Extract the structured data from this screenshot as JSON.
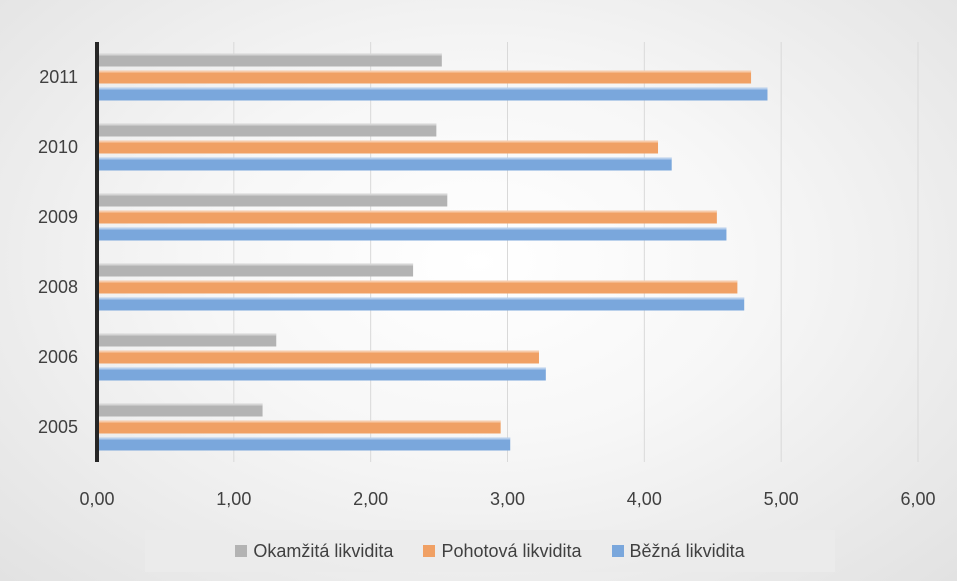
{
  "chart_data": {
    "type": "bar",
    "orientation": "horizontal",
    "categories": [
      "2005",
      "2006",
      "2008",
      "2009",
      "2010",
      "2011"
    ],
    "series": [
      {
        "name": "Okamžitá likvidita",
        "color": "#b3b3b3",
        "values": [
          1.21,
          1.31,
          2.31,
          2.56,
          2.48,
          2.52
        ]
      },
      {
        "name": "Pohotová likvidita",
        "color": "#f0a064",
        "values": [
          2.95,
          3.23,
          4.68,
          4.53,
          4.1,
          4.78
        ]
      },
      {
        "name": "Běžná likvidita",
        "color": "#7aa7dc",
        "values": [
          3.02,
          3.28,
          4.73,
          4.6,
          4.2,
          4.9
        ]
      }
    ],
    "xlim": [
      0,
      6
    ],
    "xticks": [
      "0,00",
      "1,00",
      "2,00",
      "3,00",
      "4,00",
      "5,00",
      "6,00"
    ],
    "grid": true,
    "legend_position": "bottom"
  }
}
